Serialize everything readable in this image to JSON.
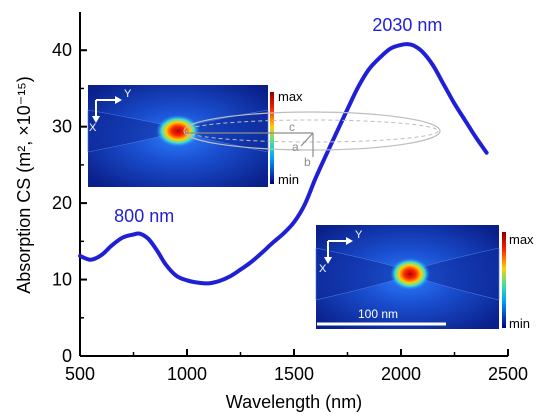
{
  "chart_data": {
    "type": "line",
    "xlabel": "Wavelength (nm)",
    "ylabel": "Absorption CS (m², ×10⁻¹⁵)",
    "xlim": [
      500,
      2500
    ],
    "ylim": [
      0,
      45
    ],
    "x_ticks": [
      "500",
      "1000",
      "1500",
      "2000",
      "2500"
    ],
    "y_ticks": [
      "0",
      "10",
      "20",
      "30",
      "40"
    ],
    "grid": false,
    "line_color": "#1f1fd6",
    "series": [
      {
        "x": [
          500,
          550,
          600,
          650,
          700,
          750,
          780,
          820,
          860,
          900,
          950,
          1000,
          1050,
          1100,
          1150,
          1200,
          1250,
          1300,
          1350,
          1400,
          1450,
          1500,
          1550,
          1600,
          1650,
          1700,
          1750,
          1800,
          1850,
          1900,
          1950,
          2000,
          2030,
          2060,
          2100,
          2150,
          2200,
          2250,
          2300,
          2350,
          2400
        ],
        "y": [
          13.1,
          12.6,
          13.2,
          14.5,
          15.5,
          15.9,
          16.0,
          15.3,
          13.8,
          12.0,
          10.5,
          9.9,
          9.6,
          9.5,
          9.8,
          10.4,
          11.3,
          12.3,
          13.5,
          14.8,
          16.0,
          17.5,
          19.8,
          23.2,
          26.3,
          29.3,
          32.3,
          35.2,
          37.5,
          39.0,
          40.2,
          40.7,
          40.8,
          40.6,
          39.8,
          38.0,
          35.5,
          33.0,
          30.8,
          28.6,
          26.6
        ]
      }
    ],
    "annotations": [
      {
        "text": "800 nm",
        "x": 800,
        "y": 17.5
      },
      {
        "text": "2030 nm",
        "x": 2030,
        "y": 42.5
      }
    ]
  },
  "insets": {
    "top": {
      "axis_y": "Y",
      "axis_x": "X",
      "colorbar_max": "max",
      "colorbar_min": "min",
      "dim_c": "c",
      "dim_a": "a",
      "dim_b": "b"
    },
    "bottom": {
      "axis_y": "Y",
      "axis_x": "X",
      "colorbar_max": "max",
      "colorbar_min": "min",
      "scale_bar": "100 nm"
    }
  }
}
